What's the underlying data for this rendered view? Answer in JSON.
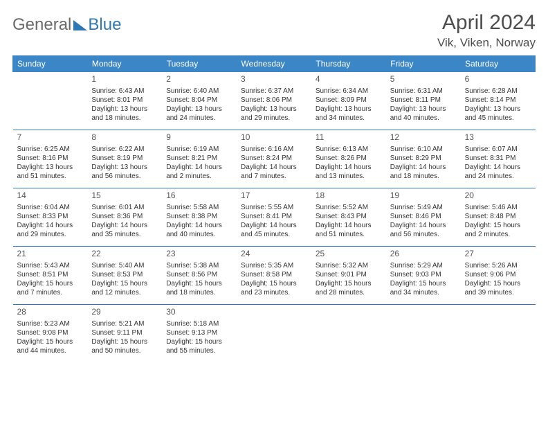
{
  "logo": {
    "text1": "General",
    "text2": "Blue",
    "color1": "#6a6a6a",
    "color2": "#2f78b6"
  },
  "title": "April 2024",
  "location": "Vik, Viken, Norway",
  "colors": {
    "header_bg": "#3a86c7",
    "header_text": "#ffffff",
    "row_border": "#2f78b6",
    "body_text": "#333333",
    "title_text": "#4d4d4d",
    "background": "#ffffff"
  },
  "days_of_week": [
    "Sunday",
    "Monday",
    "Tuesday",
    "Wednesday",
    "Thursday",
    "Friday",
    "Saturday"
  ],
  "weeks": [
    [
      null,
      {
        "n": "1",
        "sr": "Sunrise: 6:43 AM",
        "ss": "Sunset: 8:01 PM",
        "dl": "Daylight: 13 hours and 18 minutes."
      },
      {
        "n": "2",
        "sr": "Sunrise: 6:40 AM",
        "ss": "Sunset: 8:04 PM",
        "dl": "Daylight: 13 hours and 24 minutes."
      },
      {
        "n": "3",
        "sr": "Sunrise: 6:37 AM",
        "ss": "Sunset: 8:06 PM",
        "dl": "Daylight: 13 hours and 29 minutes."
      },
      {
        "n": "4",
        "sr": "Sunrise: 6:34 AM",
        "ss": "Sunset: 8:09 PM",
        "dl": "Daylight: 13 hours and 34 minutes."
      },
      {
        "n": "5",
        "sr": "Sunrise: 6:31 AM",
        "ss": "Sunset: 8:11 PM",
        "dl": "Daylight: 13 hours and 40 minutes."
      },
      {
        "n": "6",
        "sr": "Sunrise: 6:28 AM",
        "ss": "Sunset: 8:14 PM",
        "dl": "Daylight: 13 hours and 45 minutes."
      }
    ],
    [
      {
        "n": "7",
        "sr": "Sunrise: 6:25 AM",
        "ss": "Sunset: 8:16 PM",
        "dl": "Daylight: 13 hours and 51 minutes."
      },
      {
        "n": "8",
        "sr": "Sunrise: 6:22 AM",
        "ss": "Sunset: 8:19 PM",
        "dl": "Daylight: 13 hours and 56 minutes."
      },
      {
        "n": "9",
        "sr": "Sunrise: 6:19 AM",
        "ss": "Sunset: 8:21 PM",
        "dl": "Daylight: 14 hours and 2 minutes."
      },
      {
        "n": "10",
        "sr": "Sunrise: 6:16 AM",
        "ss": "Sunset: 8:24 PM",
        "dl": "Daylight: 14 hours and 7 minutes."
      },
      {
        "n": "11",
        "sr": "Sunrise: 6:13 AM",
        "ss": "Sunset: 8:26 PM",
        "dl": "Daylight: 14 hours and 13 minutes."
      },
      {
        "n": "12",
        "sr": "Sunrise: 6:10 AM",
        "ss": "Sunset: 8:29 PM",
        "dl": "Daylight: 14 hours and 18 minutes."
      },
      {
        "n": "13",
        "sr": "Sunrise: 6:07 AM",
        "ss": "Sunset: 8:31 PM",
        "dl": "Daylight: 14 hours and 24 minutes."
      }
    ],
    [
      {
        "n": "14",
        "sr": "Sunrise: 6:04 AM",
        "ss": "Sunset: 8:33 PM",
        "dl": "Daylight: 14 hours and 29 minutes."
      },
      {
        "n": "15",
        "sr": "Sunrise: 6:01 AM",
        "ss": "Sunset: 8:36 PM",
        "dl": "Daylight: 14 hours and 35 minutes."
      },
      {
        "n": "16",
        "sr": "Sunrise: 5:58 AM",
        "ss": "Sunset: 8:38 PM",
        "dl": "Daylight: 14 hours and 40 minutes."
      },
      {
        "n": "17",
        "sr": "Sunrise: 5:55 AM",
        "ss": "Sunset: 8:41 PM",
        "dl": "Daylight: 14 hours and 45 minutes."
      },
      {
        "n": "18",
        "sr": "Sunrise: 5:52 AM",
        "ss": "Sunset: 8:43 PM",
        "dl": "Daylight: 14 hours and 51 minutes."
      },
      {
        "n": "19",
        "sr": "Sunrise: 5:49 AM",
        "ss": "Sunset: 8:46 PM",
        "dl": "Daylight: 14 hours and 56 minutes."
      },
      {
        "n": "20",
        "sr": "Sunrise: 5:46 AM",
        "ss": "Sunset: 8:48 PM",
        "dl": "Daylight: 15 hours and 2 minutes."
      }
    ],
    [
      {
        "n": "21",
        "sr": "Sunrise: 5:43 AM",
        "ss": "Sunset: 8:51 PM",
        "dl": "Daylight: 15 hours and 7 minutes."
      },
      {
        "n": "22",
        "sr": "Sunrise: 5:40 AM",
        "ss": "Sunset: 8:53 PM",
        "dl": "Daylight: 15 hours and 12 minutes."
      },
      {
        "n": "23",
        "sr": "Sunrise: 5:38 AM",
        "ss": "Sunset: 8:56 PM",
        "dl": "Daylight: 15 hours and 18 minutes."
      },
      {
        "n": "24",
        "sr": "Sunrise: 5:35 AM",
        "ss": "Sunset: 8:58 PM",
        "dl": "Daylight: 15 hours and 23 minutes."
      },
      {
        "n": "25",
        "sr": "Sunrise: 5:32 AM",
        "ss": "Sunset: 9:01 PM",
        "dl": "Daylight: 15 hours and 28 minutes."
      },
      {
        "n": "26",
        "sr": "Sunrise: 5:29 AM",
        "ss": "Sunset: 9:03 PM",
        "dl": "Daylight: 15 hours and 34 minutes."
      },
      {
        "n": "27",
        "sr": "Sunrise: 5:26 AM",
        "ss": "Sunset: 9:06 PM",
        "dl": "Daylight: 15 hours and 39 minutes."
      }
    ],
    [
      {
        "n": "28",
        "sr": "Sunrise: 5:23 AM",
        "ss": "Sunset: 9:08 PM",
        "dl": "Daylight: 15 hours and 44 minutes."
      },
      {
        "n": "29",
        "sr": "Sunrise: 5:21 AM",
        "ss": "Sunset: 9:11 PM",
        "dl": "Daylight: 15 hours and 50 minutes."
      },
      {
        "n": "30",
        "sr": "Sunrise: 5:18 AM",
        "ss": "Sunset: 9:13 PM",
        "dl": "Daylight: 15 hours and 55 minutes."
      },
      null,
      null,
      null,
      null
    ]
  ]
}
